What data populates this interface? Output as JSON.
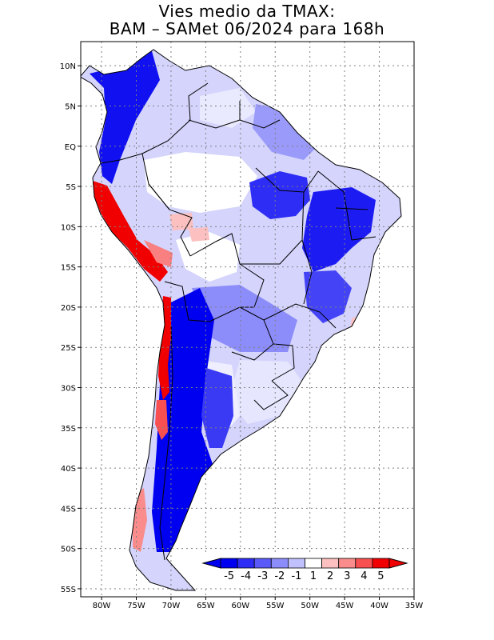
{
  "title": {
    "line1": "Vies medio da TMAX:",
    "line2": "BAM – SAMet 06/2024  para 168h"
  },
  "map": {
    "lon_range": [
      -83,
      -35
    ],
    "lat_range": [
      -56,
      13
    ],
    "lat_ticks": [
      {
        "value": 10,
        "label": "10N"
      },
      {
        "value": 5,
        "label": "5N"
      },
      {
        "value": 0,
        "label": "EQ"
      },
      {
        "value": -5,
        "label": "5S"
      },
      {
        "value": -10,
        "label": "10S"
      },
      {
        "value": -15,
        "label": "15S"
      },
      {
        "value": -20,
        "label": "20S"
      },
      {
        "value": -25,
        "label": "25S"
      },
      {
        "value": -30,
        "label": "30S"
      },
      {
        "value": -35,
        "label": "35S"
      },
      {
        "value": -40,
        "label": "40S"
      },
      {
        "value": -45,
        "label": "45S"
      },
      {
        "value": -50,
        "label": "50S"
      },
      {
        "value": -55,
        "label": "55S"
      }
    ],
    "lon_ticks": [
      {
        "value": -80,
        "label": "80W"
      },
      {
        "value": -75,
        "label": "75W"
      },
      {
        "value": -70,
        "label": "70W"
      },
      {
        "value": -65,
        "label": "65W"
      },
      {
        "value": -60,
        "label": "60W"
      },
      {
        "value": -55,
        "label": "55W"
      },
      {
        "value": -50,
        "label": "50W"
      },
      {
        "value": -45,
        "label": "45W"
      },
      {
        "value": -40,
        "label": "40W"
      },
      {
        "value": -35,
        "label": "35W"
      }
    ]
  },
  "colorbar": {
    "labels": [
      "-5",
      "-4",
      "-3",
      "-2",
      "-1",
      "1",
      "2",
      "3",
      "4",
      "5"
    ],
    "colors": [
      "#0000f0",
      "#2d2df5",
      "#5a5af8",
      "#8c8cfa",
      "#c0c0fc",
      "#ffffff",
      "#fcc0c0",
      "#fa8c8c",
      "#f85050",
      "#f00000"
    ],
    "under_color": "#0000f0",
    "over_color": "#f00000"
  }
}
